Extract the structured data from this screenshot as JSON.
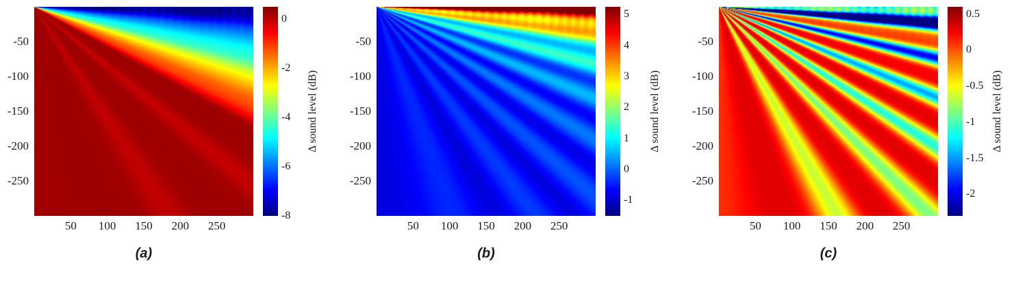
{
  "figure": {
    "background": "#ffffff",
    "colormap": "jet",
    "colorbar_label": "Δ sound level (dB)"
  },
  "chart_data": [
    {
      "type": "heatmap",
      "caption": "(a)",
      "title": "",
      "xlabel": "",
      "ylabel": "",
      "x_ticks": [
        50,
        100,
        150,
        200,
        250
      ],
      "y_ticks": [
        -50,
        -100,
        -150,
        -200,
        -250
      ],
      "x_range": [
        0,
        300
      ],
      "y_range": [
        0,
        -300
      ],
      "colormap": "jet",
      "colorbar": {
        "label": "Δ sound level (dB)",
        "ticks": [
          0,
          -2,
          -4,
          -6,
          -8
        ],
        "vmin": -8,
        "vmax": 0.5
      },
      "description": "Fan radiating from the top-left origin: about -8 dB (dark blue) along the top edge, increasing through cyan, green and yellow to about 0 dB (dark red) below roughly 30 degrees; uniform dark red over most of the domain, with faint interference ripples near the top edge.",
      "pattern": {
        "base": {
          "type": "linear",
          "v0": -8,
          "v1": 0.25,
          "s1": 0.5
        },
        "lobes": {
          "amp": -0.45,
          "period": 0.2,
          "phase": 0.45,
          "decay": 2.0,
          "power": 3
        },
        "ripple": {
          "amp": 0.5,
          "k": 0.28,
          "decay": 0.06
        }
      }
    },
    {
      "type": "heatmap",
      "caption": "(b)",
      "title": "",
      "xlabel": "",
      "ylabel": "",
      "x_ticks": [
        50,
        100,
        150,
        200,
        250
      ],
      "y_ticks": [
        -50,
        -100,
        -150,
        -200,
        -250
      ],
      "x_range": [
        0,
        300
      ],
      "y_range": [
        0,
        -300
      ],
      "colormap": "jet",
      "colorbar": {
        "label": "Δ sound level (dB)",
        "ticks": [
          5,
          4,
          3,
          2,
          1,
          0,
          -1
        ],
        "vmin": -1.5,
        "vmax": 5.25
      },
      "description": "Red/orange band (about +5 dB) along the top edge with mottled interference, decaying into a mostly blue field (about -1 dB); bright cyan/light-blue interference lobes radiate from the top-left origin toward the lower right.",
      "pattern": {
        "base": {
          "type": "exp",
          "v0": 5.4,
          "v1": -0.9,
          "tau": 0.14
        },
        "lobes": {
          "amp": 2.1,
          "period": 0.135,
          "phase": 0.0,
          "decay": 0.65,
          "power": 1
        },
        "ripple": {
          "amp": 0.8,
          "k": 0.29,
          "decay": 0.07
        }
      }
    },
    {
      "type": "heatmap",
      "caption": "(c)",
      "title": "",
      "xlabel": "",
      "ylabel": "",
      "x_ticks": [
        50,
        100,
        150,
        200,
        250
      ],
      "y_ticks": [
        -50,
        -100,
        -150,
        -200,
        -250
      ],
      "x_range": [
        0,
        300
      ],
      "y_range": [
        0,
        -300
      ],
      "colormap": "jet",
      "colorbar": {
        "label": "Δ sound level (dB)",
        "ticks": [
          0.5,
          0,
          -0.5,
          -1,
          -1.5,
          -2
        ],
        "vmin": -2.3,
        "vmax": 0.6
      },
      "description": "Mostly orange-red field (about +0.3 dB) with a rippled cyan band along the top edge; dark-blue interference lobes (down to about -2 dB) radiate from the top-left origin toward the lower right, weakening with angle.",
      "pattern": {
        "base": {
          "type": "exp",
          "v0": -1.1,
          "v1": 0.32,
          "tau": 0.1
        },
        "lobes": {
          "amp": -2.9,
          "period": 0.16,
          "phase": 0.4,
          "decay": 0.8,
          "power": 2
        },
        "ripple": {
          "amp": 0.4,
          "k": 0.3,
          "decay": 0.06
        }
      }
    }
  ]
}
